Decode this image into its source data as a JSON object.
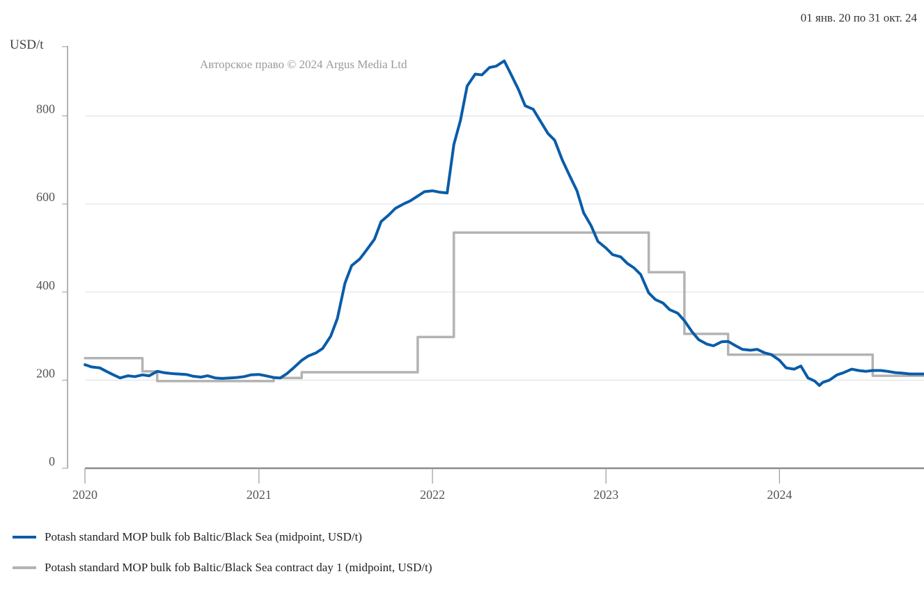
{
  "header": {
    "date_range": "01 янв. 20 по 31 окт. 24"
  },
  "chart_data": {
    "type": "line",
    "title": "",
    "ylabel": "USD/t",
    "xlabel": "",
    "copyright": "Авторское право © 2024 Argus Media Ltd",
    "ylim": [
      0,
      1000
    ],
    "xlim": [
      "2020-01-01",
      "2024-10-31"
    ],
    "y_ticks": [
      "0",
      "200",
      "400",
      "600",
      "800"
    ],
    "x_ticks": [
      {
        "date": "2020-01-01",
        "label": "2020"
      },
      {
        "date": "2021-01-01",
        "label": "2021"
      },
      {
        "date": "2022-01-01",
        "label": "2022"
      },
      {
        "date": "2023-01-01",
        "label": "2023"
      },
      {
        "date": "2024-01-01",
        "label": "2024"
      }
    ],
    "grid": true,
    "legend_position": "bottom",
    "colors": {
      "series_1": "#0a5ca8",
      "series_2": "#b3b3b3",
      "grid": "#dfe3ea",
      "axis": "#9a9a9a"
    },
    "series": [
      {
        "name": "Potash standard MOP bulk fob Baltic/Black Sea (midpoint, USD/t)",
        "step": false,
        "points": [
          [
            "2020-01-01",
            235
          ],
          [
            "2020-01-15",
            230
          ],
          [
            "2020-02-01",
            228
          ],
          [
            "2020-02-15",
            220
          ],
          [
            "2020-03-01",
            212
          ],
          [
            "2020-03-15",
            205
          ],
          [
            "2020-04-01",
            210
          ],
          [
            "2020-04-15",
            208
          ],
          [
            "2020-05-01",
            212
          ],
          [
            "2020-05-15",
            210
          ],
          [
            "2020-06-01",
            220
          ],
          [
            "2020-06-15",
            217
          ],
          [
            "2020-07-01",
            215
          ],
          [
            "2020-07-15",
            214
          ],
          [
            "2020-08-01",
            213
          ],
          [
            "2020-08-15",
            209
          ],
          [
            "2020-09-01",
            207
          ],
          [
            "2020-09-15",
            210
          ],
          [
            "2020-10-01",
            205
          ],
          [
            "2020-10-15",
            204
          ],
          [
            "2020-11-01",
            205
          ],
          [
            "2020-11-15",
            206
          ],
          [
            "2020-12-01",
            208
          ],
          [
            "2020-12-15",
            212
          ],
          [
            "2021-01-01",
            213
          ],
          [
            "2021-01-15",
            210
          ],
          [
            "2021-02-01",
            206
          ],
          [
            "2021-02-15",
            205
          ],
          [
            "2021-03-01",
            215
          ],
          [
            "2021-03-15",
            228
          ],
          [
            "2021-04-01",
            245
          ],
          [
            "2021-04-15",
            255
          ],
          [
            "2021-05-01",
            262
          ],
          [
            "2021-05-15",
            272
          ],
          [
            "2021-06-01",
            300
          ],
          [
            "2021-06-15",
            340
          ],
          [
            "2021-07-01",
            420
          ],
          [
            "2021-07-15",
            460
          ],
          [
            "2021-08-01",
            475
          ],
          [
            "2021-08-15",
            495
          ],
          [
            "2021-09-01",
            520
          ],
          [
            "2021-09-15",
            560
          ],
          [
            "2021-10-01",
            575
          ],
          [
            "2021-10-15",
            590
          ],
          [
            "2021-11-01",
            600
          ],
          [
            "2021-11-15",
            607
          ],
          [
            "2021-12-01",
            618
          ],
          [
            "2021-12-15",
            628
          ],
          [
            "2022-01-01",
            630
          ],
          [
            "2022-01-15",
            627
          ],
          [
            "2022-02-01",
            625
          ],
          [
            "2022-02-15",
            735
          ],
          [
            "2022-03-01",
            790
          ],
          [
            "2022-03-15",
            868
          ],
          [
            "2022-04-01",
            895
          ],
          [
            "2022-04-15",
            893
          ],
          [
            "2022-05-01",
            910
          ],
          [
            "2022-05-15",
            913
          ],
          [
            "2022-06-01",
            925
          ],
          [
            "2022-06-15",
            895
          ],
          [
            "2022-07-01",
            860
          ],
          [
            "2022-07-15",
            823
          ],
          [
            "2022-08-01",
            815
          ],
          [
            "2022-08-15",
            790
          ],
          [
            "2022-09-01",
            760
          ],
          [
            "2022-09-15",
            745
          ],
          [
            "2022-10-01",
            700
          ],
          [
            "2022-10-15",
            668
          ],
          [
            "2022-11-01",
            630
          ],
          [
            "2022-11-15",
            580
          ],
          [
            "2022-12-01",
            550
          ],
          [
            "2022-12-15",
            515
          ],
          [
            "2023-01-01",
            500
          ],
          [
            "2023-01-15",
            485
          ],
          [
            "2023-02-01",
            480
          ],
          [
            "2023-02-15",
            465
          ],
          [
            "2023-03-01",
            455
          ],
          [
            "2023-03-15",
            440
          ],
          [
            "2023-04-01",
            398
          ],
          [
            "2023-04-15",
            383
          ],
          [
            "2023-05-01",
            375
          ],
          [
            "2023-05-15",
            360
          ],
          [
            "2023-06-01",
            352
          ],
          [
            "2023-06-15",
            335
          ],
          [
            "2023-07-01",
            310
          ],
          [
            "2023-07-15",
            292
          ],
          [
            "2023-08-01",
            282
          ],
          [
            "2023-08-15",
            278
          ],
          [
            "2023-09-01",
            287
          ],
          [
            "2023-09-15",
            288
          ],
          [
            "2023-10-01",
            278
          ],
          [
            "2023-10-15",
            270
          ],
          [
            "2023-11-01",
            268
          ],
          [
            "2023-11-15",
            270
          ],
          [
            "2023-12-01",
            262
          ],
          [
            "2023-12-15",
            258
          ],
          [
            "2024-01-01",
            245
          ],
          [
            "2024-01-15",
            228
          ],
          [
            "2024-02-01",
            225
          ],
          [
            "2024-02-15",
            232
          ],
          [
            "2024-03-01",
            205
          ],
          [
            "2024-03-15",
            198
          ],
          [
            "2024-03-25",
            188
          ],
          [
            "2024-04-01",
            195
          ],
          [
            "2024-04-15",
            200
          ],
          [
            "2024-05-01",
            212
          ],
          [
            "2024-05-15",
            217
          ],
          [
            "2024-06-01",
            225
          ],
          [
            "2024-06-15",
            222
          ],
          [
            "2024-07-01",
            220
          ],
          [
            "2024-07-15",
            222
          ],
          [
            "2024-08-01",
            222
          ],
          [
            "2024-08-15",
            220
          ],
          [
            "2024-09-01",
            217
          ],
          [
            "2024-09-15",
            216
          ],
          [
            "2024-10-01",
            214
          ],
          [
            "2024-10-31",
            214
          ]
        ]
      },
      {
        "name": "Potash standard MOP bulk fob Baltic/Black Sea contract day 1 (midpoint, USD/t)",
        "step": true,
        "points": [
          [
            "2020-01-01",
            250
          ],
          [
            "2020-05-01",
            220
          ],
          [
            "2020-06-01",
            198
          ],
          [
            "2021-02-01",
            205
          ],
          [
            "2021-04-01",
            218
          ],
          [
            "2021-12-01",
            298
          ],
          [
            "2022-02-15",
            535
          ],
          [
            "2023-04-01",
            445
          ],
          [
            "2023-06-15",
            305
          ],
          [
            "2023-09-15",
            258
          ],
          [
            "2024-07-15",
            210
          ],
          [
            "2024-10-31",
            210
          ]
        ]
      }
    ]
  }
}
